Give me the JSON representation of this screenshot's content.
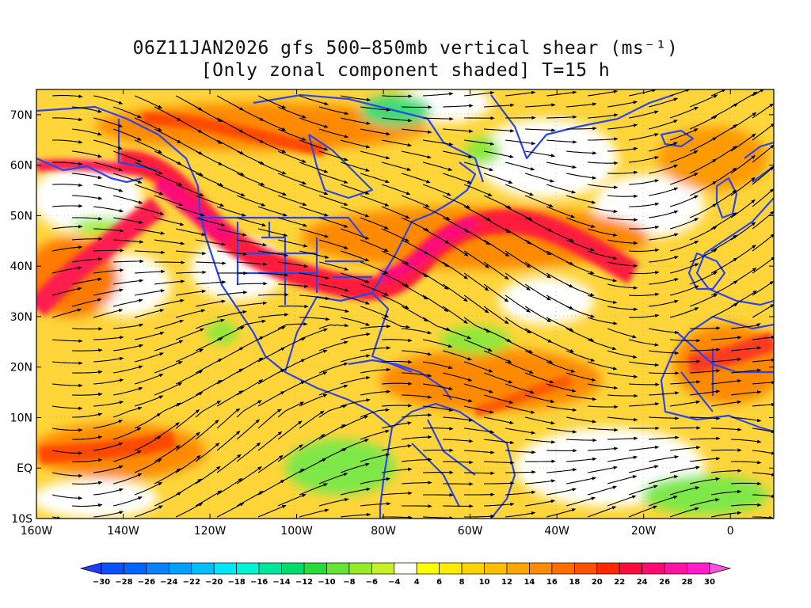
{
  "title": {
    "line1": "06Z11JAN2026 gfs 500−850mb vertical shear (ms⁻¹)",
    "line2": "[Only zonal component shaded] T=15 h"
  },
  "axes": {
    "lon_min": -160,
    "lon_max": 10,
    "lat_min": -10,
    "lat_max": 75,
    "lon_ticks": [
      {
        "value": -160,
        "label": "160W"
      },
      {
        "value": -140,
        "label": "140W"
      },
      {
        "value": -120,
        "label": "120W"
      },
      {
        "value": -100,
        "label": "100W"
      },
      {
        "value": -80,
        "label": "80W"
      },
      {
        "value": -60,
        "label": "60W"
      },
      {
        "value": -40,
        "label": "40W"
      },
      {
        "value": -20,
        "label": "20W"
      },
      {
        "value": 0,
        "label": "0"
      }
    ],
    "lat_ticks": [
      {
        "value": 70,
        "label": "70N"
      },
      {
        "value": 60,
        "label": "60N"
      },
      {
        "value": 50,
        "label": "50N"
      },
      {
        "value": 40,
        "label": "40N"
      },
      {
        "value": 30,
        "label": "30N"
      },
      {
        "value": 20,
        "label": "20N"
      },
      {
        "value": 10,
        "label": "10N"
      },
      {
        "value": 0,
        "label": "EQ"
      },
      {
        "value": -10,
        "label": "10S"
      }
    ]
  },
  "colorbar": {
    "labels": [
      "−30",
      "−28",
      "−26",
      "−24",
      "−22",
      "−20",
      "−18",
      "−16",
      "−14",
      "−12",
      "−10",
      "−8",
      "−6",
      "−4",
      "4",
      "6",
      "8",
      "10",
      "12",
      "14",
      "16",
      "18",
      "20",
      "22",
      "24",
      "26",
      "28",
      "30"
    ],
    "colors": [
      "#1e3cff",
      "#0a50ff",
      "#0064ff",
      "#0a82ff",
      "#00a0ff",
      "#00beff",
      "#00e6ff",
      "#00f5d2",
      "#00e6a0",
      "#00dc6e",
      "#28dc3c",
      "#64e632",
      "#96eb28",
      "#c8f028",
      "#ffffff",
      "#ffff00",
      "#ffeb00",
      "#ffd200",
      "#ffbe00",
      "#ffa500",
      "#ff8c00",
      "#ff6e00",
      "#ff5000",
      "#ff2800",
      "#ff0a3c",
      "#ff0a6e",
      "#ff14a0",
      "#ff1ec8",
      "#ff50e6"
    ]
  },
  "colors": {
    "coastline": "#2c46e6",
    "streamline": "#000000"
  }
}
